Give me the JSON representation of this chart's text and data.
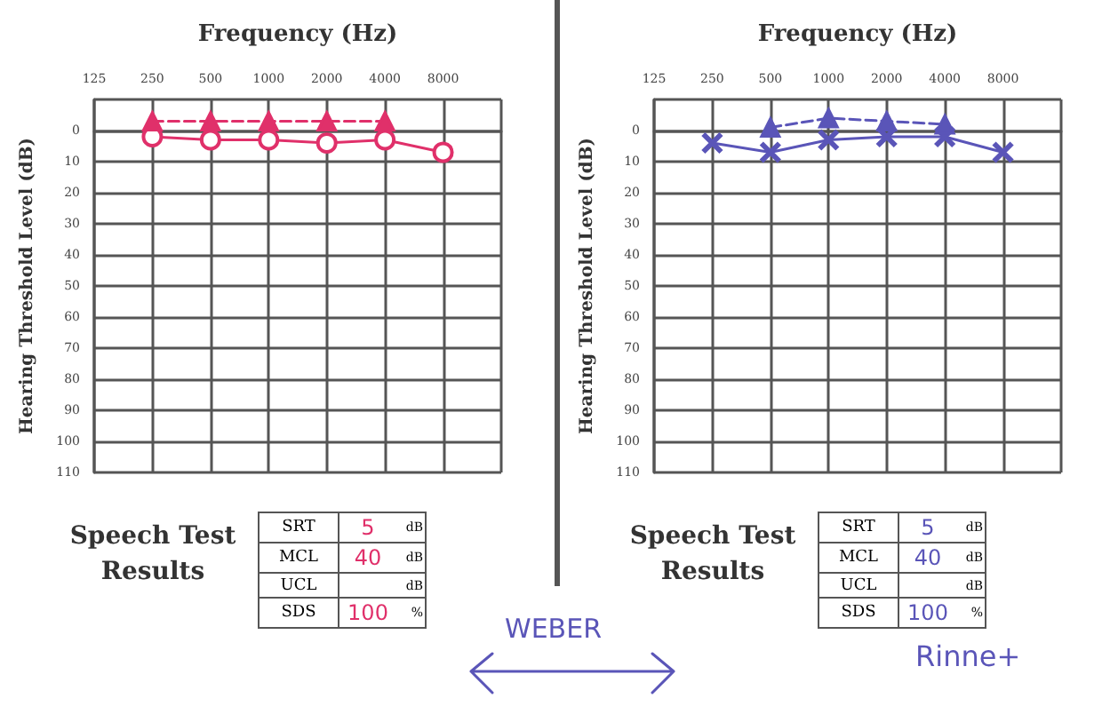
{
  "chart_data": [
    {
      "type": "line",
      "xlabel": "Frequency (Hz)",
      "ylabel": "Hearing Threshold Level (dB)",
      "categories": [
        "125",
        "250",
        "500",
        "1000",
        "2000",
        "4000",
        "8000",
        null
      ],
      "ylim": [
        110,
        -10
      ],
      "yticks": [
        {
          "value": -10,
          "label": null
        },
        0,
        10,
        20,
        30,
        40,
        50,
        60,
        70,
        80,
        90,
        100,
        110
      ],
      "grid": true,
      "series": [
        {
          "color": "#e0306a",
          "values": [
            null,
            2,
            3,
            3,
            4,
            3,
            7,
            null
          ],
          "marker": "circle",
          "line_style": "solid"
        },
        {
          "color": "#e0306a",
          "values": [
            null,
            -3,
            -3,
            -3,
            -3,
            -3,
            null,
            null
          ],
          "marker": "triangle",
          "line_style": "dashed"
        }
      ],
      "annotations": [
        "Speech Test Results",
        "SRT",
        "5",
        "dB",
        "MCL",
        "40",
        "dB",
        "UCL",
        null,
        "dB",
        "SDS",
        "100",
        "%",
        "WEBER"
      ]
    },
    {
      "type": "line",
      "xlabel": "Frequency (Hz)",
      "ylabel": "Hearing Threshold Level (dB)",
      "categories": [
        "125",
        "250",
        "500",
        "1000",
        "2000",
        "4000",
        "8000",
        null
      ],
      "ylim": [
        110,
        -10
      ],
      "yticks": [
        {
          "value": -10,
          "label": null
        },
        0,
        10,
        20,
        30,
        40,
        50,
        60,
        70,
        80,
        90,
        100,
        110
      ],
      "grid": true,
      "series": [
        {
          "color": "#5a55b8",
          "values": [
            null,
            4,
            7,
            3,
            2,
            2,
            7,
            null
          ],
          "marker": "cross",
          "line_style": "solid"
        },
        {
          "color": "#5a55b8",
          "values": [
            null,
            null,
            -1,
            -4,
            -3,
            -2,
            null,
            null
          ],
          "marker": "triangle",
          "line_style": "dashed"
        }
      ],
      "annotations": [
        "Speech Test Results",
        "SRT",
        "5",
        "dB",
        "MCL",
        "40",
        "dB",
        "UCL",
        null,
        "dB",
        "SDS",
        "100",
        "%",
        "Rinne+"
      ]
    }
  ]
}
